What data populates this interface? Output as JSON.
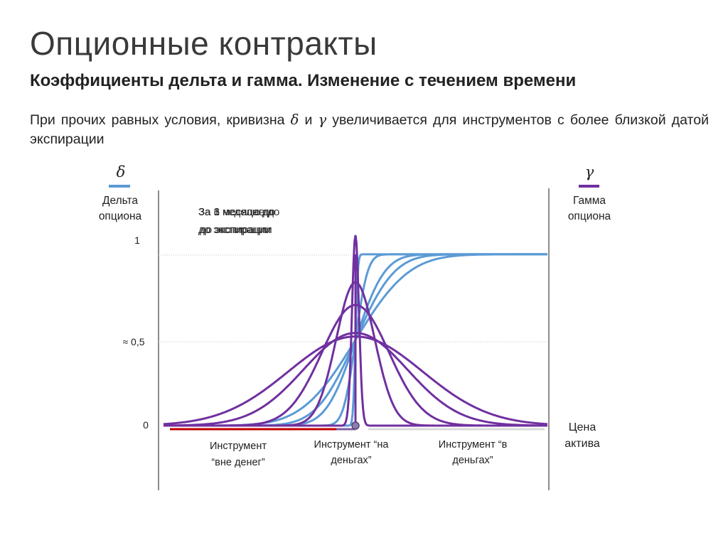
{
  "title": "Опционные контракты",
  "subtitle": "Коэффициенты дельта и гамма. Изменение с течением времени",
  "description": {
    "part1": "При прочих равных условия, кривизна ",
    "delta_symbol": "δ",
    "part2": " и ",
    "gamma_symbol": "γ",
    "part3": " увеличивается для инструментов с более близкой датой экспирации"
  },
  "chart_data": {
    "type": "line",
    "left_axis": {
      "symbol": "δ",
      "label_line1": "Дельта",
      "label_line2": "опциона",
      "color": "#5b9bd5"
    },
    "right_axis": {
      "symbol": "γ",
      "label_line1": "Гамма",
      "label_line2": "опциона",
      "color": "#7030a0"
    },
    "x_axis": {
      "label_line1": "Цена",
      "label_line2": "актива"
    },
    "y_ticks": [
      "1",
      "≈ 0,5",
      "0"
    ],
    "legend_overlap": {
      "line1_a": "За 1 неделю до",
      "line1_b": "За 3 месяца до",
      "line1_c": "За 6 месяцев до",
      "line2": "до экспирации"
    },
    "zones": [
      {
        "line1": "Инструмент",
        "line2": "“вне денег”",
        "bar_color": "#c00000"
      },
      {
        "line1": "Инструмент “на",
        "line2": "деньгах”",
        "bar_color": "#7f5f9f"
      },
      {
        "line1": "Инструмент “в",
        "line2": "деньгах”",
        "bar_color": "#d9d9d9"
      }
    ],
    "strike_x": 0,
    "x_range": [
      -1,
      1
    ],
    "y_range": [
      0,
      1.1
    ],
    "delta_curves": [
      {
        "width": 0.01,
        "value_at_strike": 0.5,
        "max": 0.98
      },
      {
        "width": 0.05,
        "value_at_strike": 0.5,
        "max": 0.98
      },
      {
        "width": 0.12,
        "value_at_strike": 0.5,
        "max": 0.98
      },
      {
        "width": 0.16,
        "value_at_strike": 0.5,
        "max": 0.98
      },
      {
        "width": 0.22,
        "value_at_strike": 0.5,
        "max": 0.98
      }
    ],
    "gamma_curves": [
      {
        "width": 0.018,
        "peak": 1.09
      },
      {
        "width": 0.1,
        "peak": 0.82
      },
      {
        "width": 0.175,
        "peak": 0.69
      },
      {
        "width": 0.27,
        "peak": 0.53
      },
      {
        "width": 0.35,
        "peak": 0.51
      }
    ]
  }
}
